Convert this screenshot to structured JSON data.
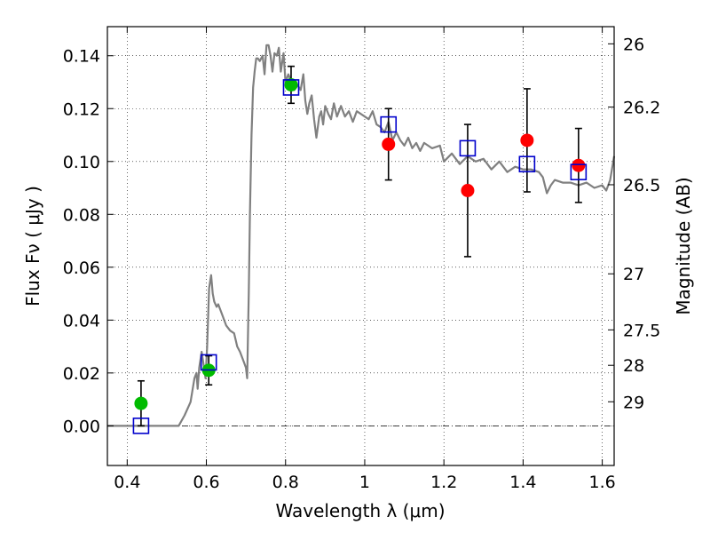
{
  "chart_data": {
    "type": "scatter",
    "xlabel": "Wavelength  λ (μm)",
    "ylabel": "Flux  Fν  ( μJy )",
    "ylabel_right": "Magnitude (AB)",
    "xlim": [
      0.35,
      1.63
    ],
    "ylim": [
      -0.015,
      0.151
    ],
    "grid": true,
    "x_ticks": [
      {
        "value": 0.4,
        "label": "0.4"
      },
      {
        "value": 0.6,
        "label": "0.6"
      },
      {
        "value": 0.8,
        "label": "0.8"
      },
      {
        "value": 1.0,
        "label": "1"
      },
      {
        "value": 1.2,
        "label": "1.2"
      },
      {
        "value": 1.4,
        "label": "1.4"
      },
      {
        "value": 1.6,
        "label": "1.6"
      }
    ],
    "y_ticks": [
      {
        "value": 0.0,
        "label": "0.00"
      },
      {
        "value": 0.02,
        "label": "0.02"
      },
      {
        "value": 0.04,
        "label": "0.04"
      },
      {
        "value": 0.06,
        "label": "0.06"
      },
      {
        "value": 0.08,
        "label": "0.08"
      },
      {
        "value": 0.1,
        "label": "0.10"
      },
      {
        "value": 0.12,
        "label": "0.12"
      },
      {
        "value": 0.14,
        "label": "0.14"
      }
    ],
    "mag_ticks": [
      {
        "value": 0.1445,
        "label": "26"
      },
      {
        "value": 0.1206,
        "label": "26.2"
      },
      {
        "value": 0.0912,
        "label": "26.5"
      },
      {
        "value": 0.0575,
        "label": "27"
      },
      {
        "value": 0.0363,
        "label": "27.5"
      },
      {
        "value": 0.0229,
        "label": "28"
      },
      {
        "value": 0.0091,
        "label": "29"
      }
    ],
    "series": [
      {
        "kind": "model_spectrum",
        "color": "#808080",
        "x": [
          0.35,
          0.53,
          0.545,
          0.56,
          0.57,
          0.575,
          0.578,
          0.582,
          0.588,
          0.592,
          0.598,
          0.602,
          0.607,
          0.612,
          0.616,
          0.62,
          0.626,
          0.63,
          0.64,
          0.65,
          0.66,
          0.67,
          0.678,
          0.685,
          0.69,
          0.695,
          0.7,
          0.703,
          0.707,
          0.71,
          0.714,
          0.718,
          0.722,
          0.726,
          0.73,
          0.735,
          0.742,
          0.747,
          0.752,
          0.757,
          0.762,
          0.767,
          0.772,
          0.778,
          0.783,
          0.788,
          0.795,
          0.8,
          0.807,
          0.815,
          0.822,
          0.83,
          0.838,
          0.845,
          0.85,
          0.855,
          0.86,
          0.866,
          0.872,
          0.878,
          0.885,
          0.89,
          0.895,
          0.9,
          0.908,
          0.915,
          0.922,
          0.93,
          0.94,
          0.95,
          0.96,
          0.97,
          0.98,
          0.99,
          1.0,
          1.01,
          1.02,
          1.03,
          1.04,
          1.05,
          1.06,
          1.07,
          1.08,
          1.09,
          1.1,
          1.11,
          1.12,
          1.13,
          1.14,
          1.15,
          1.17,
          1.19,
          1.2,
          1.22,
          1.24,
          1.26,
          1.28,
          1.3,
          1.32,
          1.34,
          1.36,
          1.38,
          1.4,
          1.42,
          1.44,
          1.45,
          1.46,
          1.47,
          1.48,
          1.5,
          1.52,
          1.54,
          1.56,
          1.58,
          1.6,
          1.61,
          1.62,
          1.63
        ],
        "y": [
          0.0,
          0.0,
          0.004,
          0.009,
          0.018,
          0.02,
          0.014,
          0.022,
          0.028,
          0.024,
          0.018,
          0.03,
          0.052,
          0.057,
          0.05,
          0.047,
          0.045,
          0.046,
          0.042,
          0.038,
          0.036,
          0.035,
          0.03,
          0.028,
          0.026,
          0.024,
          0.022,
          0.018,
          0.05,
          0.08,
          0.11,
          0.128,
          0.134,
          0.139,
          0.139,
          0.138,
          0.14,
          0.133,
          0.144,
          0.144,
          0.14,
          0.134,
          0.141,
          0.14,
          0.143,
          0.134,
          0.141,
          0.13,
          0.133,
          0.13,
          0.127,
          0.129,
          0.127,
          0.133,
          0.123,
          0.118,
          0.122,
          0.125,
          0.116,
          0.109,
          0.117,
          0.119,
          0.114,
          0.121,
          0.118,
          0.116,
          0.122,
          0.117,
          0.121,
          0.117,
          0.119,
          0.115,
          0.119,
          0.118,
          0.117,
          0.116,
          0.119,
          0.114,
          0.113,
          0.111,
          0.115,
          0.108,
          0.111,
          0.108,
          0.106,
          0.109,
          0.105,
          0.107,
          0.104,
          0.107,
          0.105,
          0.106,
          0.1,
          0.103,
          0.099,
          0.102,
          0.1,
          0.101,
          0.097,
          0.1,
          0.096,
          0.098,
          0.097,
          0.097,
          0.096,
          0.094,
          0.088,
          0.091,
          0.093,
          0.092,
          0.092,
          0.091,
          0.092,
          0.09,
          0.091,
          0.089,
          0.093,
          0.102
        ]
      },
      {
        "kind": "model_photometry",
        "marker": "open-square",
        "color": "#0000cc",
        "x": [
          0.435,
          0.606,
          0.814,
          1.06,
          1.26,
          1.41,
          1.54
        ],
        "y": [
          0.0,
          0.024,
          0.128,
          0.114,
          0.105,
          0.099,
          0.096
        ]
      },
      {
        "kind": "measured",
        "marker": "filled-circle",
        "color": "#00bb00",
        "x": [
          0.435,
          0.606,
          0.814
        ],
        "y": [
          0.0085,
          0.021,
          0.129
        ],
        "err": [
          0.0085,
          0.0055,
          0.007
        ]
      },
      {
        "kind": "measured",
        "marker": "filled-circle",
        "color": "#ff0000",
        "x": [
          1.06,
          1.26,
          1.41,
          1.54
        ],
        "y": [
          0.1065,
          0.089,
          0.108,
          0.0985
        ],
        "err": [
          0.0135,
          0.025,
          0.0195,
          0.014
        ]
      }
    ]
  }
}
